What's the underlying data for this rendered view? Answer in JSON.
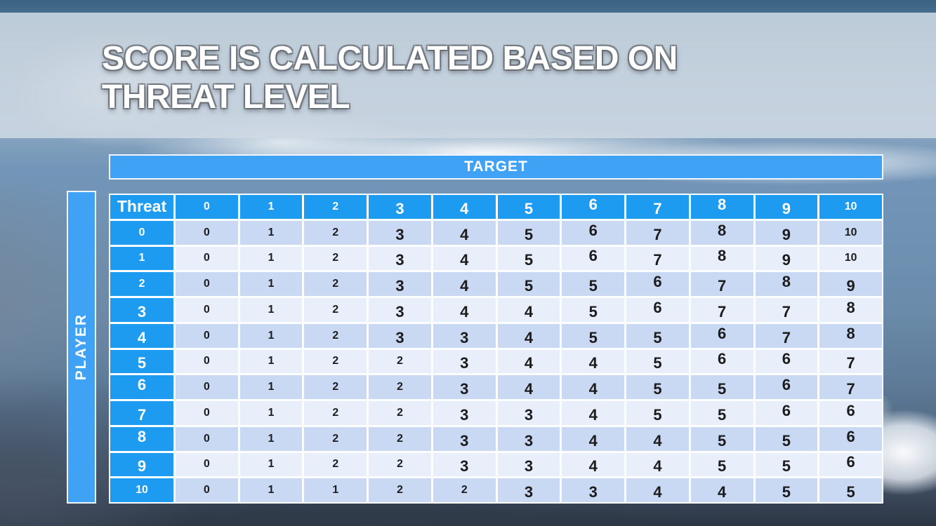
{
  "slide": {
    "title_lines": [
      "SCORE IS CALCULATED BASED ON",
      "THREAT LEVEL"
    ]
  },
  "matrix": {
    "target_label": "TARGET",
    "player_label": "PLAYER",
    "corner_label": "Threat",
    "col_headers": [
      "0",
      "1",
      "2",
      "3",
      "4",
      "5",
      "6",
      "7",
      "8",
      "9",
      "10"
    ],
    "row_headers": [
      "0",
      "1",
      "2",
      "3",
      "4",
      "5",
      "6",
      "7",
      "8",
      "9",
      "10"
    ],
    "rows": [
      [
        "0",
        "1",
        "2",
        "3",
        "4",
        "5",
        "6",
        "7",
        "8",
        "9",
        "10"
      ],
      [
        "0",
        "1",
        "2",
        "3",
        "4",
        "5",
        "6",
        "7",
        "8",
        "9",
        "10"
      ],
      [
        "0",
        "1",
        "2",
        "3",
        "4",
        "5",
        "5",
        "6",
        "7",
        "8",
        "9"
      ],
      [
        "0",
        "1",
        "2",
        "3",
        "4",
        "4",
        "5",
        "6",
        "7",
        "7",
        "8"
      ],
      [
        "0",
        "1",
        "2",
        "3",
        "3",
        "4",
        "5",
        "5",
        "6",
        "7",
        "8"
      ],
      [
        "0",
        "1",
        "2",
        "2",
        "3",
        "4",
        "4",
        "5",
        "6",
        "6",
        "7"
      ],
      [
        "0",
        "1",
        "2",
        "2",
        "3",
        "4",
        "4",
        "5",
        "5",
        "6",
        "7"
      ],
      [
        "0",
        "1",
        "2",
        "2",
        "3",
        "3",
        "4",
        "5",
        "5",
        "6",
        "6"
      ],
      [
        "0",
        "1",
        "2",
        "2",
        "3",
        "3",
        "4",
        "4",
        "5",
        "5",
        "6"
      ],
      [
        "0",
        "1",
        "2",
        "2",
        "3",
        "3",
        "4",
        "4",
        "5",
        "5",
        "6"
      ],
      [
        "0",
        "1",
        "1",
        "2",
        "2",
        "3",
        "3",
        "4",
        "4",
        "5",
        "5"
      ]
    ]
  },
  "colors": {
    "header_cell_blue": "#1D9BF1",
    "axis_bar_blue": "#3FA2F4",
    "row_stripe_dark": "#C9D8F3",
    "row_stripe_light": "#E9EEFB",
    "cell_text": "#1C1C1C",
    "header_text": "#FFFFFF",
    "title_text": "#FFFFFF",
    "title_band": "#CFD9E3",
    "top_strip": "#3C6182",
    "bottom_strip": "#2C3542"
  }
}
